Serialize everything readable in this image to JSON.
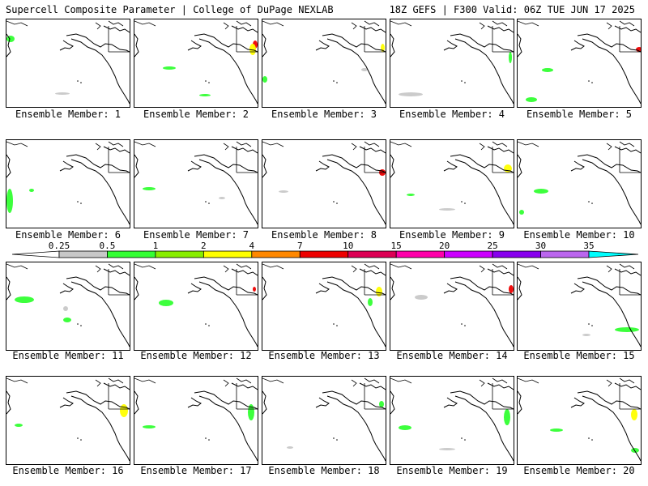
{
  "header": {
    "left": "Supercell Composite Parameter | College of DuPage NEXLAB",
    "right": "18Z GEFS | F300 Valid: 06Z TUE JUN 17 2025"
  },
  "colorbar": {
    "labels": [
      "0.25",
      "0.5",
      "1",
      "2",
      "4",
      "7",
      "10",
      "15",
      "20",
      "25",
      "30",
      "35"
    ],
    "colors": [
      "#ffffff",
      "#c8c8c8",
      "#33ff33",
      "#88ee00",
      "#ffff00",
      "#ff8800",
      "#ee0000",
      "#dd0055",
      "#ff00aa",
      "#cc00ff",
      "#8800ee",
      "#bb66ee",
      "#00ffff"
    ]
  },
  "members": [
    {
      "caption": "Ensemble Member: 1"
    },
    {
      "caption": "Ensemble Member: 2"
    },
    {
      "caption": "Ensemble Member: 3"
    },
    {
      "caption": "Ensemble Member: 4"
    },
    {
      "caption": "Ensemble Member: 5"
    },
    {
      "caption": "Ensemble Member: 6"
    },
    {
      "caption": "Ensemble Member: 7"
    },
    {
      "caption": "Ensemble Member: 8"
    },
    {
      "caption": "Ensemble Member: 9"
    },
    {
      "caption": "Ensemble Member: 10"
    },
    {
      "caption": "Ensemble Member: 11"
    },
    {
      "caption": "Ensemble Member: 12"
    },
    {
      "caption": "Ensemble Member: 13"
    },
    {
      "caption": "Ensemble Member: 14"
    },
    {
      "caption": "Ensemble Member: 15"
    },
    {
      "caption": "Ensemble Member: 16"
    },
    {
      "caption": "Ensemble Member: 17"
    },
    {
      "caption": "Ensemble Member: 18"
    },
    {
      "caption": "Ensemble Member: 19"
    },
    {
      "caption": "Ensemble Member: 20"
    }
  ]
}
